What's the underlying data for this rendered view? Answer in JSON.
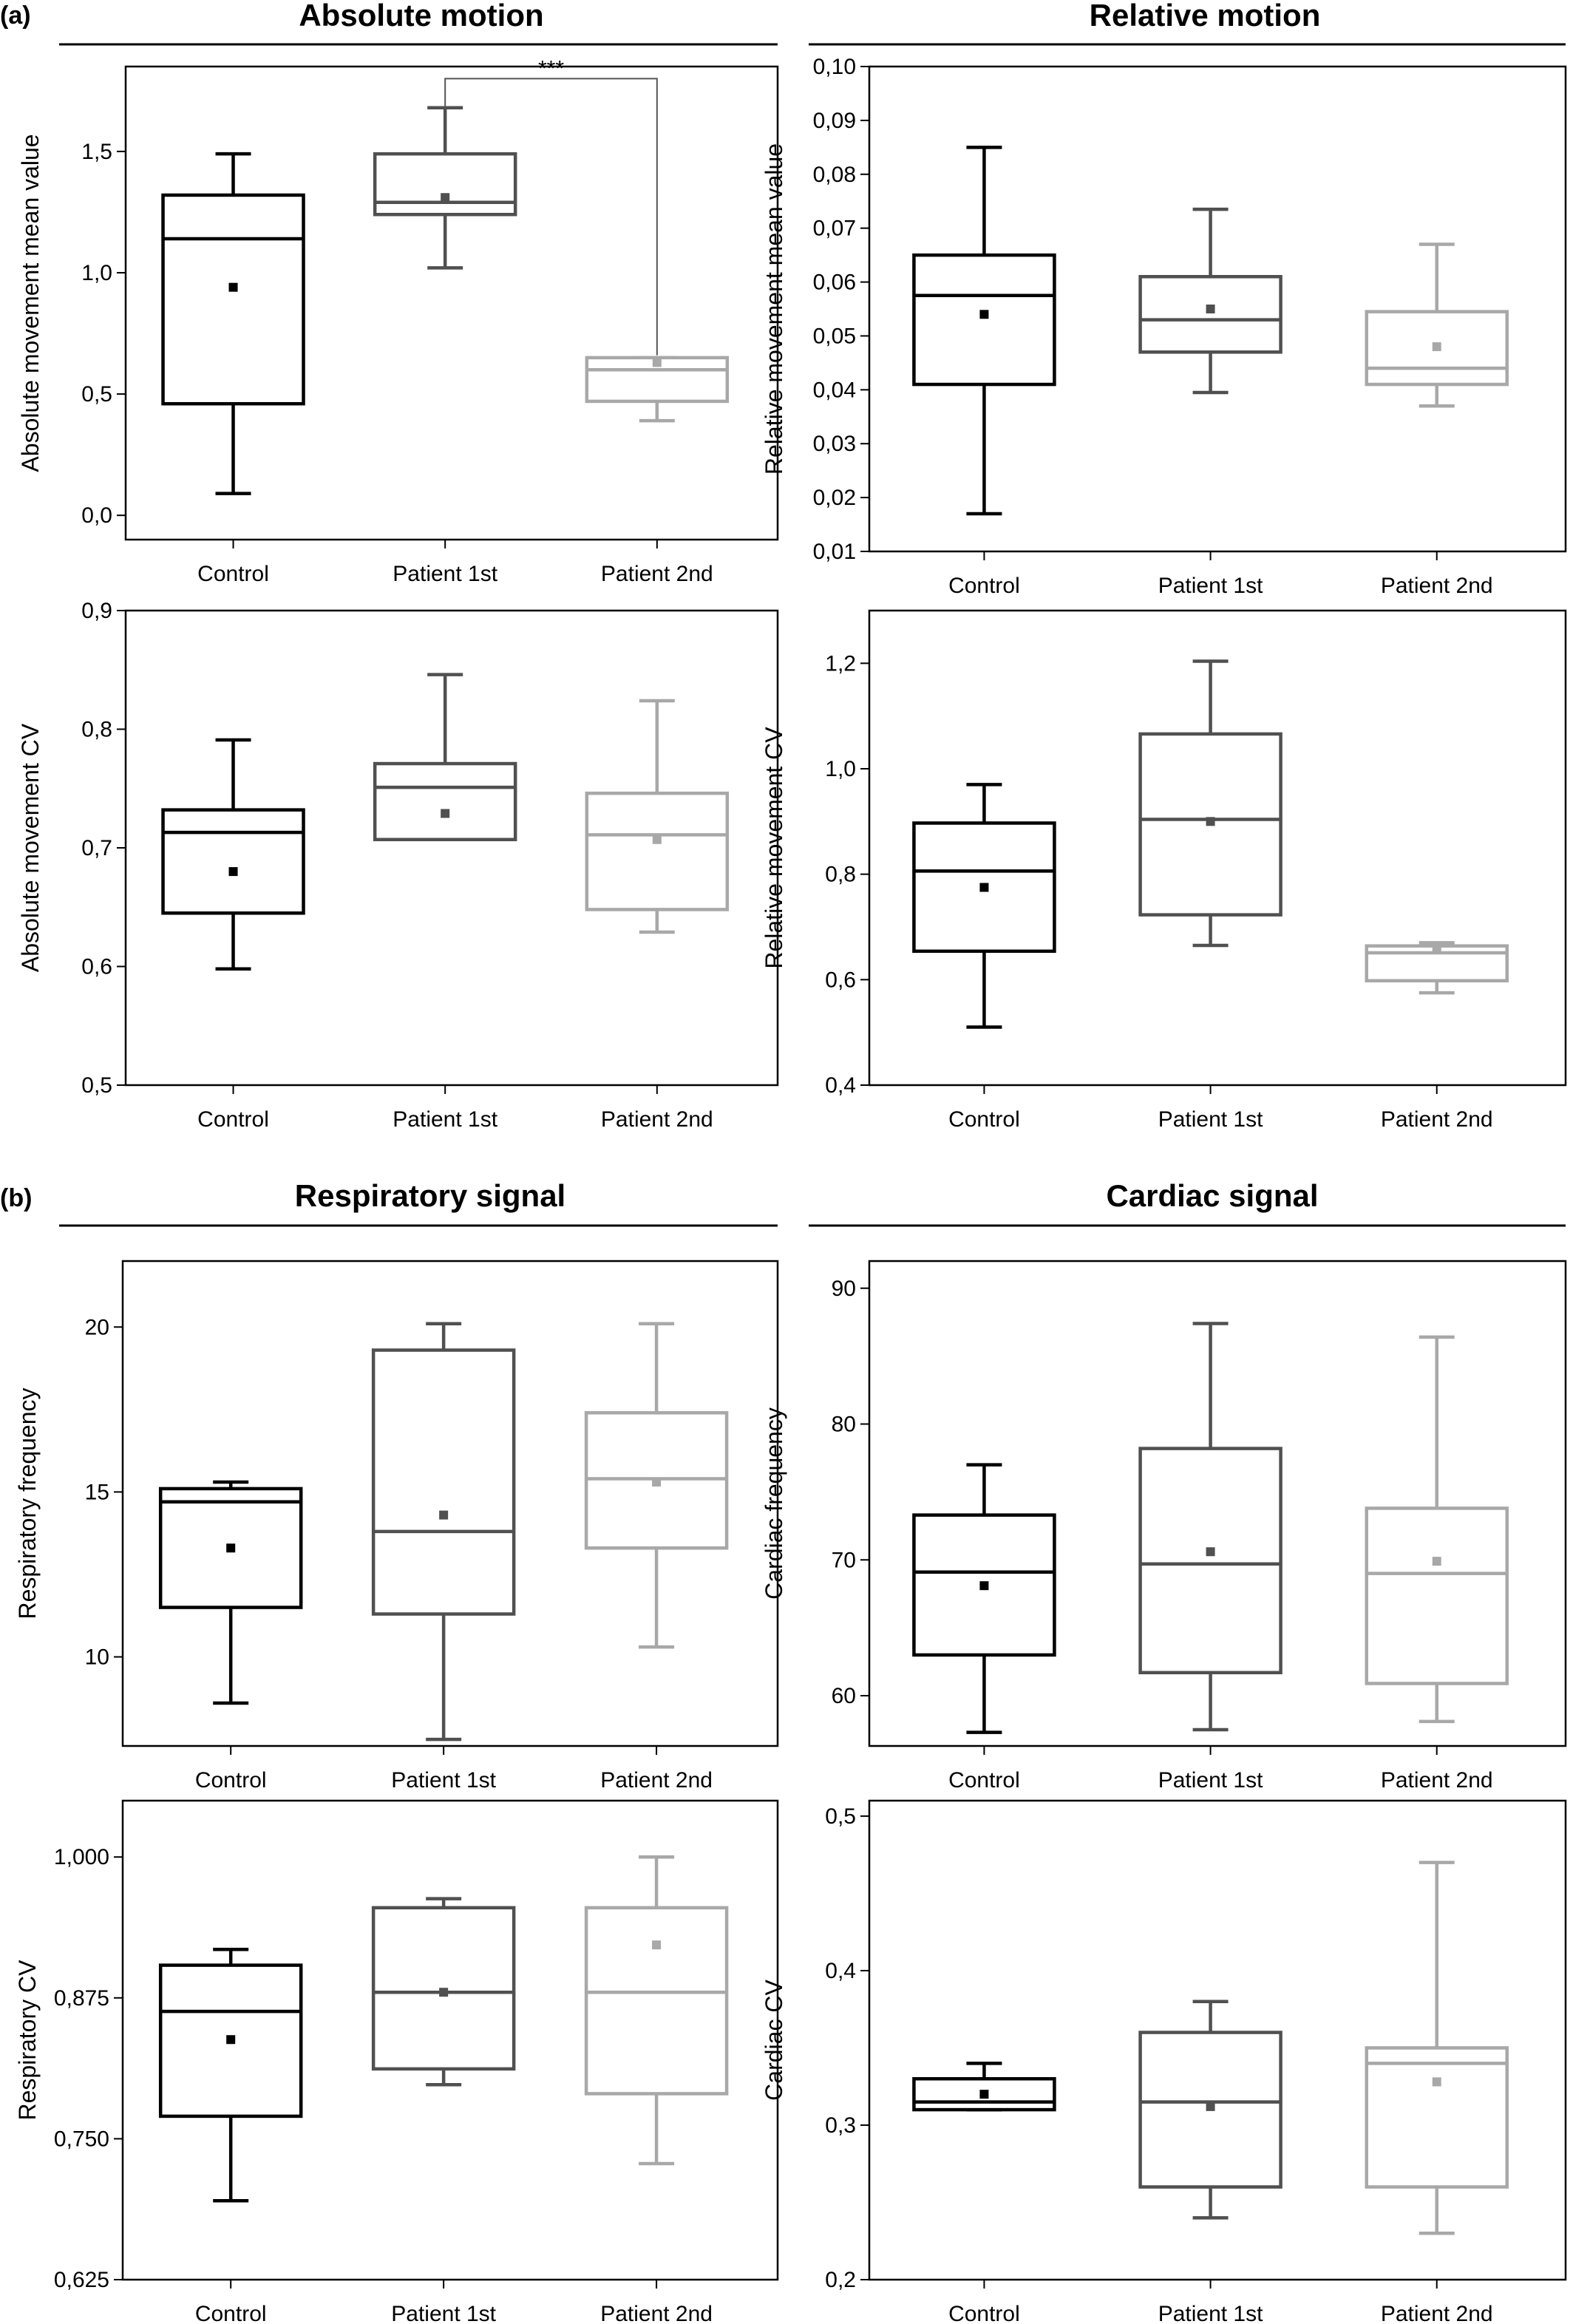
{
  "panel_labels": {
    "a": "(a)",
    "b": "(b)"
  },
  "section_titles": {
    "absolute": "Absolute motion",
    "relative": "Relative motion",
    "respiratory": "Respiratory signal",
    "cardiac": "Cardiac signal"
  },
  "colors": {
    "Control": "#000000",
    "Patient 1st": "#505050",
    "Patient 2nd": "#a8a8a8"
  },
  "chart_data": [
    {
      "id": "abs_mean",
      "type": "box",
      "ylabel": "Absolute movement mean value",
      "categories": [
        "Control",
        "Patient 1st",
        "Patient 2nd"
      ],
      "ylim": [
        -0.1,
        1.85
      ],
      "yticks": [
        0.0,
        0.5,
        1.0,
        1.5
      ],
      "ytick_labels": [
        "0,0",
        "0,5",
        "1,0",
        "1,5"
      ],
      "boxes": [
        {
          "whislo": 0.09,
          "q1": 0.46,
          "med": 1.14,
          "q3": 1.32,
          "whishi": 1.49,
          "mean": 0.94
        },
        {
          "whislo": 1.02,
          "q1": 1.24,
          "med": 1.29,
          "q3": 1.49,
          "whishi": 1.68,
          "mean": 1.31
        },
        {
          "whislo": 0.39,
          "q1": 0.47,
          "med": 0.6,
          "q3": 0.65,
          "whishi": 0.65,
          "mean": 0.63
        }
      ],
      "significance": {
        "from": 1,
        "to": 2,
        "label": "***",
        "y": 1.8,
        "drop_from": 1.68,
        "drop_to": 0.66
      }
    },
    {
      "id": "rel_mean",
      "type": "box",
      "ylabel": "Relative movement mean value",
      "categories": [
        "Control",
        "Patient 1st",
        "Patient 2nd"
      ],
      "ylim": [
        0.01,
        0.1
      ],
      "yticks": [
        0.01,
        0.02,
        0.03,
        0.04,
        0.05,
        0.06,
        0.07,
        0.08,
        0.09,
        0.1
      ],
      "ytick_labels": [
        "0,01",
        "0,02",
        "0,03",
        "0,04",
        "0,05",
        "0,06",
        "0,07",
        "0,08",
        "0,09",
        "0,10"
      ],
      "boxes": [
        {
          "whislo": 0.017,
          "q1": 0.041,
          "med": 0.0575,
          "q3": 0.065,
          "whishi": 0.085,
          "mean": 0.054
        },
        {
          "whislo": 0.0395,
          "q1": 0.047,
          "med": 0.053,
          "q3": 0.061,
          "whishi": 0.0735,
          "mean": 0.055
        },
        {
          "whislo": 0.037,
          "q1": 0.041,
          "med": 0.044,
          "q3": 0.0545,
          "whishi": 0.067,
          "mean": 0.048
        }
      ]
    },
    {
      "id": "abs_cv",
      "type": "box",
      "ylabel": "Absolute movement CV",
      "categories": [
        "Control",
        "Patient 1st",
        "Patient 2nd"
      ],
      "ylim": [
        0.5,
        0.9
      ],
      "yticks": [
        0.5,
        0.6,
        0.7,
        0.8,
        0.9
      ],
      "ytick_labels": [
        "0,5",
        "0,6",
        "0,7",
        "0,8",
        "0,9"
      ],
      "boxes": [
        {
          "whislo": 0.598,
          "q1": 0.645,
          "med": 0.713,
          "q3": 0.732,
          "whishi": 0.791,
          "mean": 0.68
        },
        {
          "whislo": 0.707,
          "q1": 0.707,
          "med": 0.751,
          "q3": 0.771,
          "whishi": 0.846,
          "mean": 0.729
        },
        {
          "whislo": 0.629,
          "q1": 0.648,
          "med": 0.711,
          "q3": 0.746,
          "whishi": 0.824,
          "mean": 0.707
        }
      ]
    },
    {
      "id": "rel_cv",
      "type": "box",
      "ylabel": "Relative movement CV",
      "categories": [
        "Control",
        "Patient 1st",
        "Patient 2nd"
      ],
      "ylim": [
        0.4,
        1.3
      ],
      "yticks": [
        0.4,
        0.6,
        0.8,
        1.0,
        1.2
      ],
      "ytick_labels": [
        "0,4",
        "0,6",
        "0,8",
        "1,0",
        "1,2"
      ],
      "boxes": [
        {
          "whislo": 0.51,
          "q1": 0.654,
          "med": 0.806,
          "q3": 0.897,
          "whishi": 0.97,
          "mean": 0.775
        },
        {
          "whislo": 0.665,
          "q1": 0.723,
          "med": 0.904,
          "q3": 1.066,
          "whishi": 1.204,
          "mean": 0.9
        },
        {
          "whislo": 0.575,
          "q1": 0.598,
          "med": 0.651,
          "q3": 0.664,
          "whishi": 0.67,
          "mean": 0.66
        }
      ]
    },
    {
      "id": "resp_freq",
      "type": "box",
      "ylabel": "Respiratory frequency",
      "categories": [
        "Control",
        "Patient 1st",
        "Patient 2nd"
      ],
      "ylim": [
        7.3,
        22.0
      ],
      "yticks": [
        10,
        15,
        20
      ],
      "ytick_labels": [
        "10",
        "15",
        "20"
      ],
      "boxes": [
        {
          "whislo": 8.6,
          "q1": 11.5,
          "med": 14.7,
          "q3": 15.1,
          "whishi": 15.3,
          "mean": 13.3
        },
        {
          "whislo": 7.5,
          "q1": 11.3,
          "med": 13.8,
          "q3": 19.3,
          "whishi": 20.1,
          "mean": 14.3
        },
        {
          "whislo": 10.3,
          "q1": 13.3,
          "med": 15.4,
          "q3": 17.4,
          "whishi": 20.1,
          "mean": 15.3
        }
      ]
    },
    {
      "id": "card_freq",
      "type": "box",
      "ylabel": "Cardiac frequency",
      "categories": [
        "Control",
        "Patient 1st",
        "Patient 2nd"
      ],
      "ylim": [
        56.3,
        92.0
      ],
      "yticks": [
        60,
        70,
        80,
        90
      ],
      "ytick_labels": [
        "60",
        "70",
        "80",
        "90"
      ],
      "boxes": [
        {
          "whislo": 57.3,
          "q1": 63.0,
          "med": 69.1,
          "q3": 73.3,
          "whishi": 77.0,
          "mean": 68.1
        },
        {
          "whislo": 57.5,
          "q1": 61.7,
          "med": 69.7,
          "q3": 78.2,
          "whishi": 87.4,
          "mean": 70.6
        },
        {
          "whislo": 58.1,
          "q1": 60.9,
          "med": 69.0,
          "q3": 73.8,
          "whishi": 86.4,
          "mean": 69.9
        }
      ]
    },
    {
      "id": "resp_cv",
      "type": "box",
      "ylabel": "Respiratory CV",
      "categories": [
        "Control",
        "Patient 1st",
        "Patient 2nd"
      ],
      "ylim": [
        0.625,
        1.05
      ],
      "yticks": [
        0.625,
        0.75,
        0.875,
        1.0
      ],
      "ytick_labels": [
        "0,625",
        "0,750",
        "0,875",
        "1,000"
      ],
      "boxes": [
        {
          "whislo": 0.695,
          "q1": 0.77,
          "med": 0.863,
          "q3": 0.904,
          "whishi": 0.918,
          "mean": 0.838
        },
        {
          "whislo": 0.798,
          "q1": 0.812,
          "med": 0.88,
          "q3": 0.955,
          "whishi": 0.963,
          "mean": 0.88
        },
        {
          "whislo": 0.728,
          "q1": 0.79,
          "med": 0.88,
          "q3": 0.955,
          "whishi": 1.0,
          "mean": 0.922
        }
      ]
    },
    {
      "id": "card_cv",
      "type": "box",
      "ylabel": "Cardiac CV",
      "categories": [
        "Control",
        "Patient 1st",
        "Patient 2nd"
      ],
      "ylim": [
        0.2,
        0.51
      ],
      "yticks": [
        0.2,
        0.3,
        0.4,
        0.5
      ],
      "ytick_labels": [
        "0,2",
        "0,3",
        "0,4",
        "0,5"
      ],
      "boxes": [
        {
          "whislo": 0.31,
          "q1": 0.31,
          "med": 0.315,
          "q3": 0.33,
          "whishi": 0.34,
          "mean": 0.32
        },
        {
          "whislo": 0.24,
          "q1": 0.26,
          "med": 0.315,
          "q3": 0.36,
          "whishi": 0.38,
          "mean": 0.312
        },
        {
          "whislo": 0.23,
          "q1": 0.26,
          "med": 0.34,
          "q3": 0.35,
          "whishi": 0.47,
          "mean": 0.328
        }
      ]
    }
  ]
}
